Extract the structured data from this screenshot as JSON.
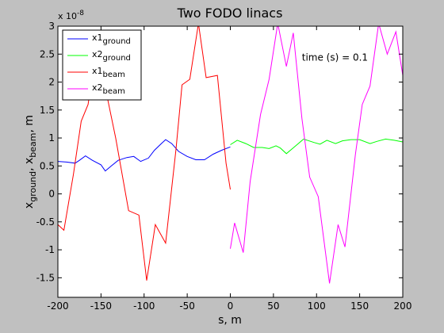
{
  "chart_data": {
    "type": "line",
    "title": "Two FODO linacs",
    "xlabel": "s, m",
    "ylabel": {
      "main": "x",
      "sub1": "ground",
      "sep": ", x",
      "sub2": "beam",
      "tail": ", m"
    },
    "y_exponent": {
      "prefix": "x 10",
      "power": "-8"
    },
    "xlim": [
      -200,
      200
    ],
    "ylim": [
      -1.85,
      3.0
    ],
    "xticks": [
      -200,
      -150,
      -100,
      -50,
      0,
      50,
      100,
      150,
      200
    ],
    "xtick_labels": [
      "-200",
      "-150",
      "-100",
      "-50",
      "0",
      "50",
      "100",
      "150",
      "200"
    ],
    "yticks": [
      -1.5,
      -1,
      -0.5,
      0,
      0.5,
      1,
      1.5,
      2,
      2.5,
      3
    ],
    "ytick_labels": [
      "-1.5",
      "-1",
      "-0.5",
      "0",
      "0.5",
      "1",
      "1.5",
      "2",
      "2.5",
      "3"
    ],
    "grid": false,
    "legend_position": "top-left",
    "annotation": {
      "text": "time (s) = 0.1",
      "x": 83,
      "y": 2.38
    },
    "series": [
      {
        "name": "x1",
        "sub": "ground",
        "color": "#0000ff",
        "x": [
          -200,
          -190,
          -180,
          -175,
          -168,
          -160,
          -150,
          -145,
          -138,
          -130,
          -120,
          -112,
          -104,
          -95,
          -88,
          -80,
          -75,
          -68,
          -60,
          -50,
          -40,
          -30,
          -20,
          -10,
          0
        ],
        "y": [
          0.58,
          0.57,
          0.55,
          0.6,
          0.68,
          0.6,
          0.52,
          0.41,
          0.5,
          0.6,
          0.65,
          0.67,
          0.58,
          0.64,
          0.78,
          0.9,
          0.97,
          0.9,
          0.76,
          0.67,
          0.61,
          0.61,
          0.71,
          0.78,
          0.84
        ]
      },
      {
        "name": "x2",
        "sub": "ground",
        "color": "#00ff00",
        "x": [
          0,
          8,
          18,
          27,
          37,
          45,
          53,
          58,
          65,
          75,
          85,
          97,
          104,
          112,
          122,
          130,
          140,
          150,
          162,
          170,
          180,
          190,
          200
        ],
        "y": [
          0.88,
          0.96,
          0.9,
          0.83,
          0.83,
          0.81,
          0.86,
          0.82,
          0.72,
          0.85,
          0.98,
          0.92,
          0.89,
          0.96,
          0.9,
          0.95,
          0.97,
          0.97,
          0.9,
          0.94,
          0.98,
          0.96,
          0.93
        ]
      },
      {
        "name": "x1",
        "sub": "beam",
        "color": "#ff0000",
        "x": [
          -200,
          -193,
          -182,
          -173,
          -165,
          -155,
          -145,
          -133,
          -118,
          -106,
          -97,
          -87,
          -75,
          -63,
          -56,
          -47,
          -37,
          -28,
          -15,
          -5,
          0
        ],
        "y": [
          -0.55,
          -0.65,
          0.35,
          1.3,
          1.6,
          2.65,
          1.9,
          1.0,
          -0.3,
          -0.38,
          -1.55,
          -0.55,
          -0.88,
          0.8,
          1.95,
          2.05,
          3.05,
          2.08,
          2.12,
          0.55,
          0.08
        ]
      },
      {
        "name": "x2",
        "sub": "beam",
        "color": "#ff00ff",
        "x": [
          0,
          5,
          15,
          23,
          35,
          45,
          55,
          65,
          73,
          83,
          92,
          102,
          115,
          125,
          133,
          145,
          153,
          162,
          172,
          182,
          192,
          200
        ],
        "y": [
          -0.98,
          -0.52,
          -1.05,
          0.22,
          1.42,
          2.05,
          3.05,
          2.28,
          2.88,
          1.35,
          0.3,
          -0.05,
          -1.6,
          -0.55,
          -0.95,
          0.7,
          1.6,
          1.93,
          3.05,
          2.5,
          2.9,
          2.12
        ]
      }
    ]
  }
}
